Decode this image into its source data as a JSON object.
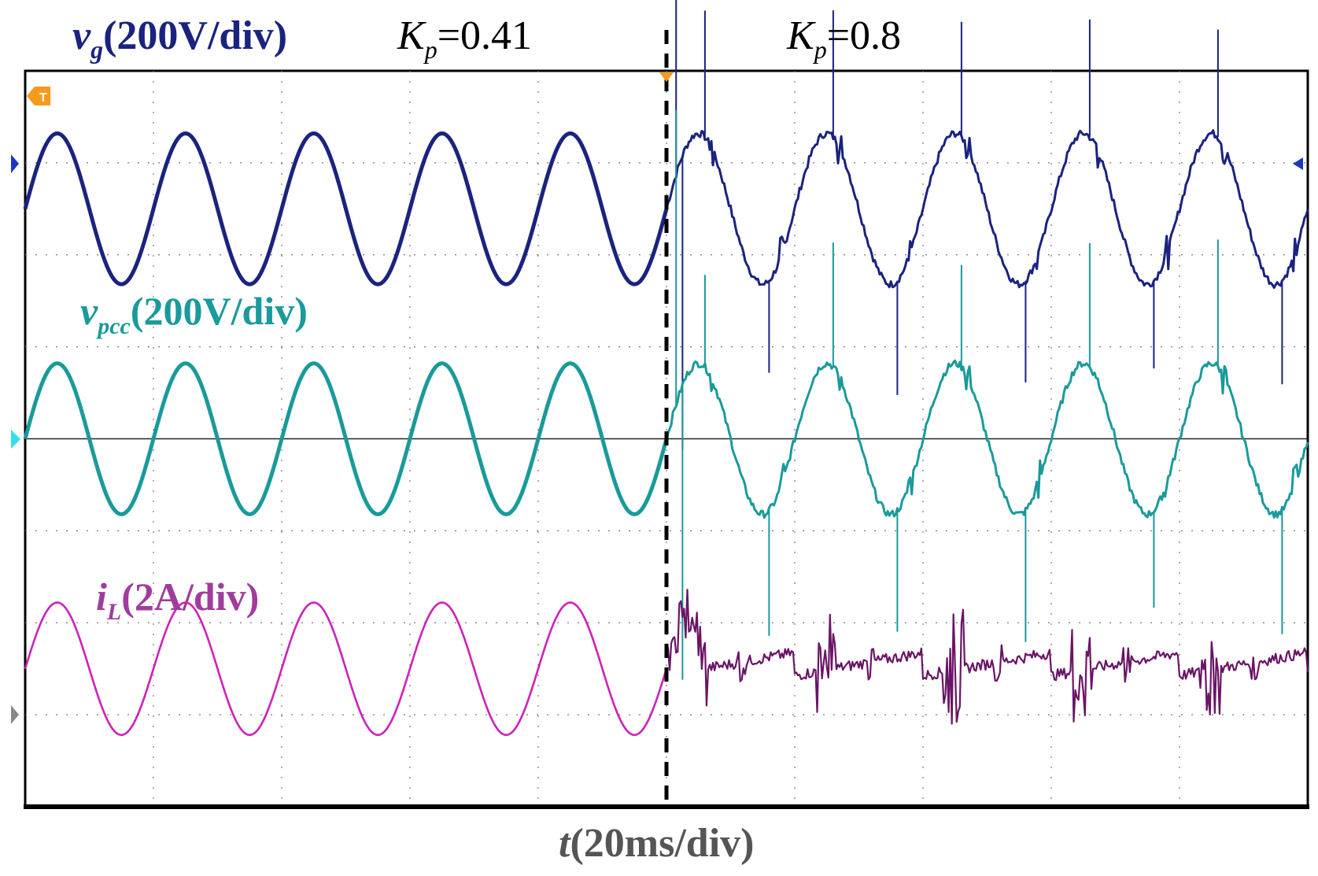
{
  "chart_data": {
    "type": "line",
    "title": "",
    "xlabel": {
      "var": "t",
      "unit": "(20ms/div)"
    },
    "x_divisions": 10,
    "y_divisions": 8,
    "x_unit_ms_per_div": 20,
    "switch_time_ms": 100,
    "grid": "dotted",
    "segments": [
      {
        "name": "before",
        "kp_symbol": "K",
        "kp_sub": "p",
        "kp_value": "=0.41"
      },
      {
        "name": "after",
        "kp_symbol": "K",
        "kp_sub": "p",
        "kp_value": "=0.8"
      }
    ],
    "series": [
      {
        "id": "vg",
        "label_main": "v",
        "label_sub": "g",
        "label_scale": "(200V/div)",
        "color": "#1a237e",
        "frequency_hz": 50,
        "offset_div": 2.5,
        "amplitude_div": 0.82,
        "phase_deg": 0,
        "distorted_after_switch": true
      },
      {
        "id": "vpcc",
        "label_main": "v",
        "label_sub": "pcc",
        "label_scale": "(200V/div)",
        "color": "#1a9a9a",
        "frequency_hz": 50,
        "offset_div": 0,
        "amplitude_div": 0.82,
        "phase_deg": 0,
        "distorted_after_switch": true
      },
      {
        "id": "iL",
        "label_main": "i",
        "label_sub": "L",
        "label_scale": "(2A/div)",
        "color": "#cc22bb",
        "color_distorted": "#6a1466",
        "frequency_hz": 50,
        "offset_div": -2.5,
        "amplitude_div": 0.72,
        "phase_deg": 0,
        "distorted_after_switch": true
      }
    ],
    "markers": {
      "trigger": "T"
    }
  }
}
